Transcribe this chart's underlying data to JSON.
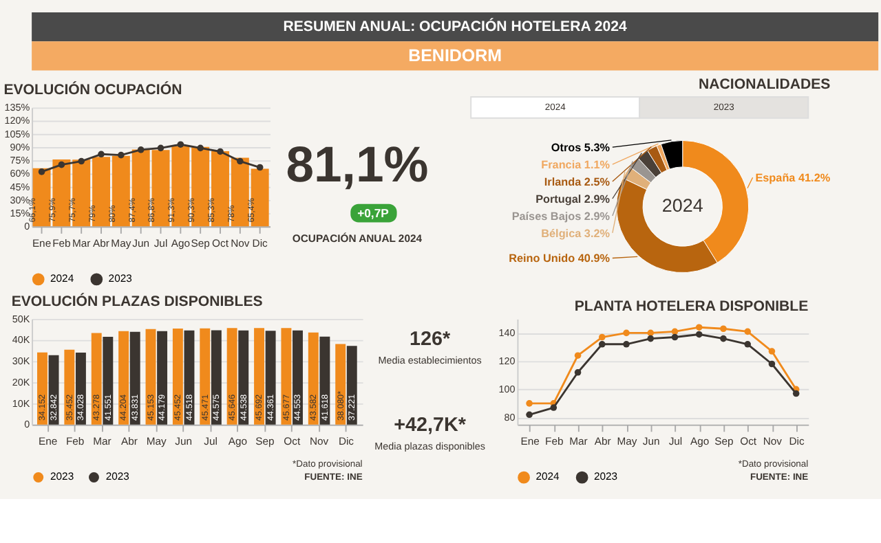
{
  "chart_data": [
    {
      "type": "other",
      "title": "RESUMEN ANUAL: OCUPACIÓN HOTELERA 2024",
      "subtitle": "BENIDORM"
    },
    {
      "type": "bar",
      "title": "EVOLUCIÓN OCUPACIÓN",
      "categories": [
        "Ene",
        "Feb",
        "Mar",
        "Abr",
        "May",
        "Jun",
        "Jul",
        "Ago",
        "Sep",
        "Oct",
        "Nov",
        "Dic"
      ],
      "series": [
        {
          "name": "2024",
          "color": "#f08a1c",
          "values": [
            66.1,
            75.9,
            75.7,
            79,
            80,
            87.4,
            86.8,
            91.3,
            90.3,
            85.3,
            78,
            65.4
          ],
          "value_labels": [
            "66,1%",
            "75,9%",
            "75,7%",
            "79%",
            "80%",
            "87,4%",
            "86,8%",
            "91,3%",
            "90,3%",
            "85,3%",
            "78%",
            "65,4%"
          ]
        },
        {
          "name": "2023",
          "type": "line",
          "color": "#3b3530",
          "values": [
            62,
            70,
            74,
            82,
            81,
            87,
            89,
            93,
            89,
            85,
            74,
            67
          ]
        }
      ],
      "ylim": [
        0,
        135
      ],
      "yticks": [
        0,
        {
          "value": 15,
          "label": "15%"
        },
        {
          "value": 30,
          "label": "30%"
        },
        {
          "value": 45,
          "label": "45%"
        },
        {
          "value": 60,
          "label": "60%"
        },
        {
          "value": 75,
          "label": "75%"
        },
        {
          "value": 90,
          "label": "90%"
        },
        {
          "value": 105,
          "label": "105%"
        },
        {
          "value": 120,
          "label": "120%"
        },
        {
          "value": 135,
          "label": "135%"
        }
      ],
      "grid": "y",
      "legend": "bottom",
      "marker": "circle"
    },
    {
      "type": "other",
      "annotations": [
        "81,1%",
        "+0,7P",
        "OCUPACIÓN ANUAL 2024"
      ]
    },
    {
      "type": "donut",
      "title": "NACIONALIDADES",
      "categories": [
        "España",
        "Reino Unido",
        "Bélgica",
        "Países Bajos",
        "Portugal",
        "Irlanda",
        "Francia",
        "Otros"
      ],
      "values": [
        41.2,
        40.9,
        3.2,
        2.9,
        2.9,
        2.5,
        1.1,
        5.3
      ],
      "value_labels": [
        "41.2%",
        "40.9%",
        "3.2%",
        "2.9%",
        "2.9%",
        "2.5%",
        "1.1%",
        "5.3%"
      ],
      "colors": [
        "#f08a1c",
        "#b8650f",
        "#e0b07a",
        "#9a9591",
        "#4a4038",
        "#a85a12",
        "#f0a860",
        "#000000"
      ],
      "annotations": [
        "2024",
        "2024",
        "2023"
      ]
    },
    {
      "type": "bar",
      "title": "EVOLUCIÓN PLAZAS DISPONIBLES",
      "categories": [
        "Ene",
        "Feb",
        "Mar",
        "Abr",
        "May",
        "Jun",
        "Jul",
        "Ago",
        "Sep",
        "Oct",
        "Nov",
        "Dic"
      ],
      "series": [
        {
          "name": "2023",
          "color": "#f08a1c",
          "values": [
            34152,
            35452,
            43278,
            44204,
            45153,
            45452,
            45471,
            45646,
            45692,
            45677,
            43582,
            38080
          ],
          "value_labels": [
            "34.152",
            "35.452",
            "43.278",
            "44.204",
            "45.153",
            "45.452",
            "45.471",
            "45.646",
            "45.692",
            "45.677",
            "43.582",
            "38.080*"
          ]
        },
        {
          "name": "2023",
          "color": "#3b3530",
          "values": [
            32842,
            34028,
            41551,
            43831,
            44179,
            44518,
            44575,
            44538,
            44361,
            44553,
            41618,
            37221
          ],
          "value_labels": [
            "32.842",
            "34.028",
            "41.551",
            "43.831",
            "44.179",
            "44.518",
            "44.575",
            "44.538",
            "44.361",
            "44.553",
            "41.618",
            "37.221"
          ]
        }
      ],
      "ylim": [
        0,
        50000
      ],
      "yticks": [
        0,
        {
          "value": 10000,
          "label": "10K"
        },
        {
          "value": 20000,
          "label": "20K"
        },
        {
          "value": 30000,
          "label": "30K"
        },
        {
          "value": 40000,
          "label": "40K"
        },
        {
          "value": 50000,
          "label": "50K"
        }
      ],
      "grid": "y",
      "legend": "bottom",
      "annotations": [
        "*Dato provisional",
        "FUENTE: INE"
      ]
    },
    {
      "type": "other",
      "annotations": [
        "126*",
        "Media establecimientos",
        "+42,7K*",
        "Media plazas disponibles"
      ]
    },
    {
      "type": "line",
      "title": "PLANTA HOTELERA DISPONIBLE",
      "categories": [
        "Ene",
        "Feb",
        "Mar",
        "Abr",
        "May",
        "Jun",
        "Jul",
        "Ago",
        "Sep",
        "Oct",
        "Nov",
        "Dic"
      ],
      "series": [
        {
          "name": "2024",
          "color": "#f08a1c",
          "values": [
            90,
            90,
            124,
            137,
            140,
            140,
            141,
            144,
            143,
            141,
            127,
            100
          ]
        },
        {
          "name": "2023",
          "color": "#3b3530",
          "values": [
            82,
            87,
            112,
            132,
            132,
            136,
            137,
            139,
            136,
            132,
            118,
            97
          ]
        }
      ],
      "ylim": [
        75,
        150
      ],
      "yticks": [
        80,
        100,
        120,
        140
      ],
      "grid": "y",
      "legend": "bottom",
      "marker": "circle",
      "annotations": [
        "*Dato provisional",
        "FUENTE: INE"
      ]
    }
  ]
}
